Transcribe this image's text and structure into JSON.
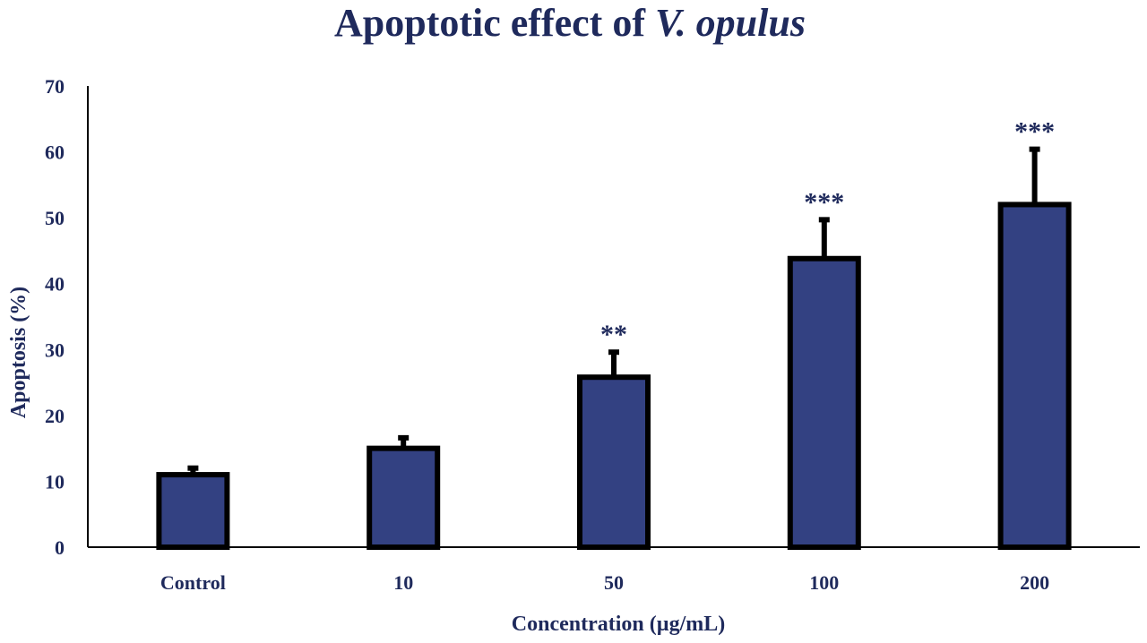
{
  "colors": {
    "text": "#1f2a5c",
    "bar_fill": "#334182",
    "bar_stroke": "#000000",
    "axis": "#000000",
    "background": "#ffffff"
  },
  "chart_data": {
    "type": "bar",
    "title": "Apoptotic effect of ",
    "title_species": "V. opulus",
    "xlabel": "Concentration  (µg/mL)",
    "ylabel": "Apoptosis  (%)",
    "categories": [
      "Control",
      "10",
      "50",
      "100",
      "200"
    ],
    "values": [
      11,
      15,
      25.8,
      43.8,
      52
    ],
    "error_upper": [
      1,
      1.6,
      3.8,
      5.9,
      8.4
    ],
    "significance": [
      "",
      "",
      "**",
      "***",
      "***"
    ],
    "ylim": [
      0,
      70
    ],
    "yticks": [
      "0",
      "10",
      "20",
      "30",
      "40",
      "50",
      "60",
      "70"
    ],
    "grid": false,
    "legend": "none"
  }
}
